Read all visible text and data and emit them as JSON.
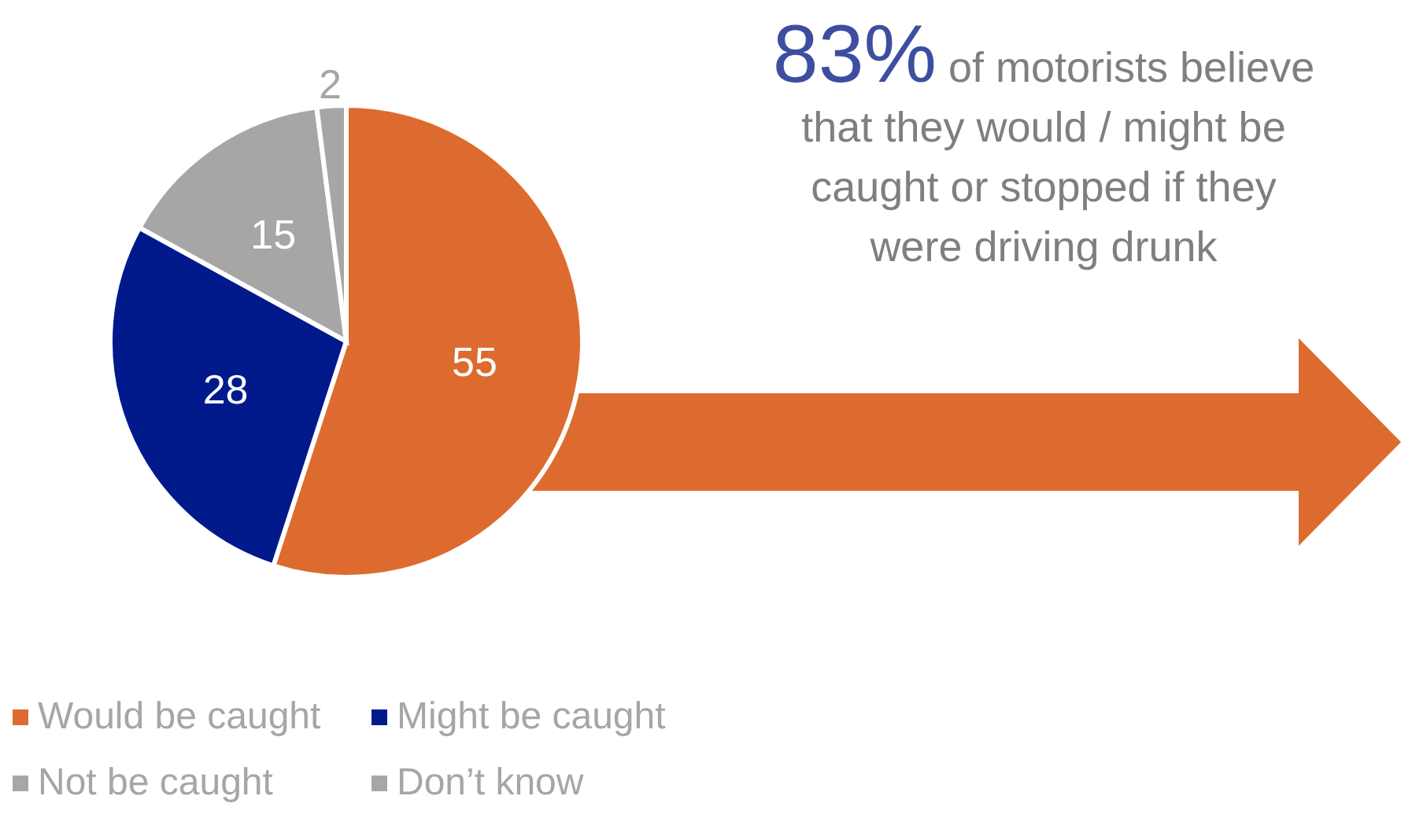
{
  "chart_data": {
    "type": "pie",
    "categories": [
      "Would be caught",
      "Might be caught",
      "Not be caught",
      "Don’t know"
    ],
    "values": [
      55,
      28,
      15,
      2
    ],
    "colors": [
      "#dd6b2f",
      "#001a8c",
      "#a6a6a6",
      "#a6a6a6"
    ],
    "data_labels": true,
    "legend": "bottom left",
    "annotations": [
      "83%",
      "of motorists believe that they would / might be caught or stopped if they were driving drunk"
    ]
  }
}
